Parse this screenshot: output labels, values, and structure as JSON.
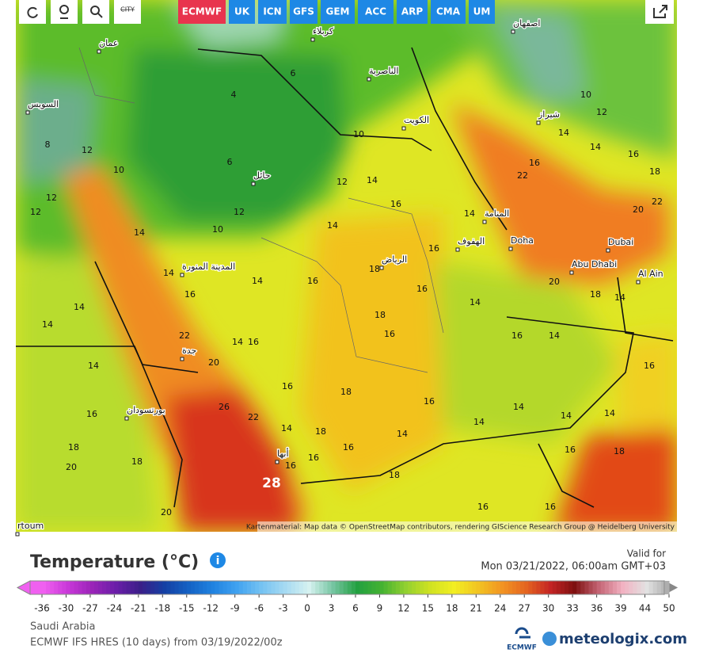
{
  "toolbar": {
    "city_button": "CITY",
    "models": [
      "ECMWF",
      "UK",
      "ICN",
      "GFS",
      "GEM",
      "ACC",
      "ARP",
      "CMA",
      "UM"
    ],
    "active_model": "ECMWF"
  },
  "map": {
    "place_labels": [
      "Doha",
      "Dubai",
      "Abu Dhabi",
      "Al Ain",
      "rtoum",
      "الرياض",
      "جدة",
      "المدينة المنورة",
      "حائل",
      "الكويت",
      "المنامة",
      "الهفوف",
      "أبها",
      "بورتسودان",
      "عمان",
      "الناصرية",
      "شيراز",
      "اصفهان",
      "السويس",
      "كربلاء"
    ],
    "temperature_labels": [
      4,
      6,
      6,
      10,
      12,
      14,
      16,
      14,
      12,
      10,
      14,
      16,
      18,
      16,
      18,
      16,
      16,
      14,
      14,
      16,
      14,
      14,
      16,
      14,
      14,
      14,
      16,
      14,
      16,
      18,
      18,
      16,
      18,
      16,
      16,
      18,
      22,
      22,
      20,
      26,
      22,
      28,
      14,
      16,
      16,
      14,
      14,
      14,
      16,
      18,
      20,
      18,
      20,
      14,
      12,
      14,
      12,
      10,
      12,
      8,
      16,
      16,
      14,
      16,
      14,
      18,
      16,
      14,
      12,
      10,
      14,
      16,
      22,
      20,
      20,
      18
    ],
    "attribution": "Kartenmaterial: Map data © OpenStreetMap contributors, rendering GIScience Research Group @ Heidelberg University"
  },
  "legend": {
    "title": "Temperature (°C)",
    "valid_for_label": "Valid for",
    "valid_time": "Mon 03/21/2022, 06:00am GMT+03",
    "ticks": [
      -36,
      -30,
      -27,
      -24,
      -21,
      -18,
      -15,
      -12,
      -9,
      -6,
      -3,
      0,
      3,
      6,
      9,
      12,
      15,
      18,
      21,
      24,
      27,
      30,
      33,
      36,
      39,
      44,
      50
    ]
  },
  "footer": {
    "region": "Saudi Arabia",
    "model_run": "ECMWF IFS HRES (10 days) from 03/19/2022/00z",
    "logos": [
      "ECMWF",
      "meteologix.com"
    ]
  }
}
